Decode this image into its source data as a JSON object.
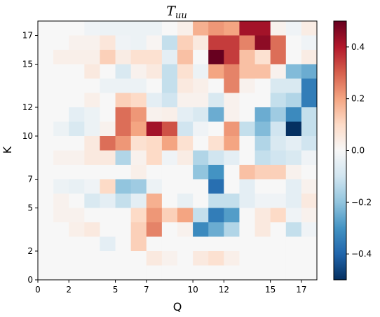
{
  "chart_data": {
    "type": "heatmap",
    "title": "T",
    "title_subscript": "uu",
    "xlabel": "Q",
    "ylabel": "K",
    "x_range": [
      0,
      18
    ],
    "y_range": [
      0,
      18
    ],
    "x_ticks": [
      0,
      2,
      5,
      7,
      10,
      12,
      15,
      17
    ],
    "y_ticks": [
      0,
      2,
      5,
      7,
      10,
      12,
      15,
      17
    ],
    "colormap": "RdBu_r",
    "vmin": -0.5,
    "vmax": 0.5,
    "colorbar_ticks": [
      0.4,
      0.2,
      0.0,
      -0.2,
      -0.4
    ],
    "colorbar_tick_labels": [
      "0.4",
      "0.2",
      "0.0",
      "−0.2",
      "−0.4"
    ],
    "row_order": "top row is K=17, bottom row is K=0; columns Q=0..17 left to right",
    "values": [
      [
        0.0,
        0.0,
        0.0,
        -0.02,
        -0.03,
        -0.03,
        -0.03,
        -0.03,
        0.0,
        0.03,
        0.18,
        0.22,
        0.2,
        0.42,
        0.42,
        0.02,
        -0.02,
        0.04
      ],
      [
        0.0,
        0.0,
        0.02,
        0.02,
        0.06,
        -0.02,
        -0.03,
        0.01,
        -0.12,
        0.12,
        0.05,
        0.35,
        0.35,
        0.25,
        0.45,
        0.28,
        0.0,
        -0.02
      ],
      [
        0.0,
        0.03,
        0.03,
        0.03,
        0.12,
        0.04,
        0.08,
        0.08,
        -0.05,
        0.15,
        0.0,
        0.52,
        0.35,
        0.15,
        0.08,
        0.28,
        0.0,
        0.04
      ],
      [
        0.0,
        0.0,
        0.0,
        0.05,
        0.0,
        -0.08,
        0.02,
        0.05,
        -0.12,
        0.08,
        -0.03,
        0.2,
        0.25,
        0.15,
        0.15,
        0.02,
        -0.22,
        -0.25
      ],
      [
        0.0,
        0.0,
        0.0,
        0.0,
        -0.03,
        -0.03,
        -0.03,
        0.0,
        -0.12,
        0.05,
        0.03,
        0.0,
        0.25,
        0.02,
        0.0,
        -0.08,
        -0.08,
        -0.35
      ],
      [
        0.0,
        0.0,
        0.0,
        0.03,
        0.0,
        0.12,
        0.1,
        -0.05,
        -0.1,
        0.02,
        0.02,
        -0.08,
        0.02,
        0.0,
        0.0,
        -0.12,
        -0.15,
        -0.35
      ],
      [
        0.0,
        0.0,
        -0.05,
        -0.03,
        0.0,
        0.28,
        0.22,
        0.02,
        0.03,
        -0.05,
        -0.08,
        -0.25,
        0.02,
        0.0,
        -0.25,
        -0.18,
        -0.32,
        -0.12
      ],
      [
        0.0,
        -0.03,
        -0.08,
        -0.03,
        0.02,
        0.28,
        0.2,
        0.42,
        0.32,
        -0.1,
        -0.02,
        0.0,
        0.22,
        -0.12,
        -0.22,
        -0.1,
        -0.5,
        -0.12
      ],
      [
        0.0,
        0.0,
        0.0,
        0.05,
        0.28,
        0.22,
        0.08,
        0.1,
        0.2,
        0.08,
        0.0,
        0.08,
        0.2,
        0.0,
        -0.15,
        -0.08,
        -0.05,
        -0.1
      ],
      [
        0.0,
        0.02,
        0.02,
        0.05,
        0.05,
        -0.15,
        0.02,
        0.1,
        -0.02,
        0.04,
        -0.15,
        -0.1,
        -0.05,
        0.0,
        -0.12,
        -0.1,
        -0.08,
        -0.02
      ],
      [
        0.0,
        0.0,
        0.0,
        0.0,
        0.0,
        0.0,
        0.03,
        0.0,
        0.0,
        0.0,
        -0.2,
        -0.3,
        0.0,
        0.15,
        0.12,
        0.12,
        0.02,
        0.0
      ],
      [
        0.0,
        -0.03,
        -0.04,
        -0.02,
        0.1,
        -0.2,
        -0.18,
        -0.03,
        0.0,
        0.0,
        0.0,
        -0.38,
        0.0,
        -0.05,
        0.0,
        0.0,
        -0.05,
        0.02
      ],
      [
        0.0,
        0.02,
        0.0,
        -0.08,
        -0.05,
        -0.12,
        -0.05,
        0.18,
        0.0,
        -0.04,
        0.0,
        -0.12,
        -0.12,
        -0.05,
        -0.02,
        -0.02,
        -0.05,
        0.05
      ],
      [
        0.0,
        0.02,
        0.02,
        0.0,
        0.0,
        0.0,
        0.1,
        0.22,
        0.12,
        0.2,
        -0.12,
        -0.35,
        -0.28,
        0.0,
        0.05,
        0.1,
        -0.02,
        0.02
      ],
      [
        0.0,
        0.0,
        0.03,
        0.05,
        0.0,
        0.0,
        0.12,
        0.25,
        0.0,
        0.02,
        -0.32,
        -0.25,
        -0.15,
        0.0,
        0.05,
        0.0,
        -0.12,
        -0.02
      ],
      [
        0.0,
        0.0,
        0.0,
        0.0,
        -0.05,
        0.0,
        0.12,
        0.0,
        0.0,
        0.0,
        0.0,
        0.0,
        0.0,
        0.0,
        0.0,
        0.0,
        0.0,
        0.0
      ],
      [
        0.0,
        0.0,
        0.0,
        0.0,
        0.0,
        0.0,
        0.0,
        0.05,
        0.02,
        0.0,
        0.05,
        0.08,
        0.03,
        0.0,
        0.0,
        0.0,
        0.0,
        0.0
      ],
      [
        0.0,
        0.0,
        0.0,
        0.0,
        0.0,
        0.0,
        0.0,
        0.0,
        0.0,
        0.0,
        0.0,
        0.0,
        0.0,
        0.0,
        0.0,
        0.0,
        0.0,
        0.0
      ]
    ]
  }
}
